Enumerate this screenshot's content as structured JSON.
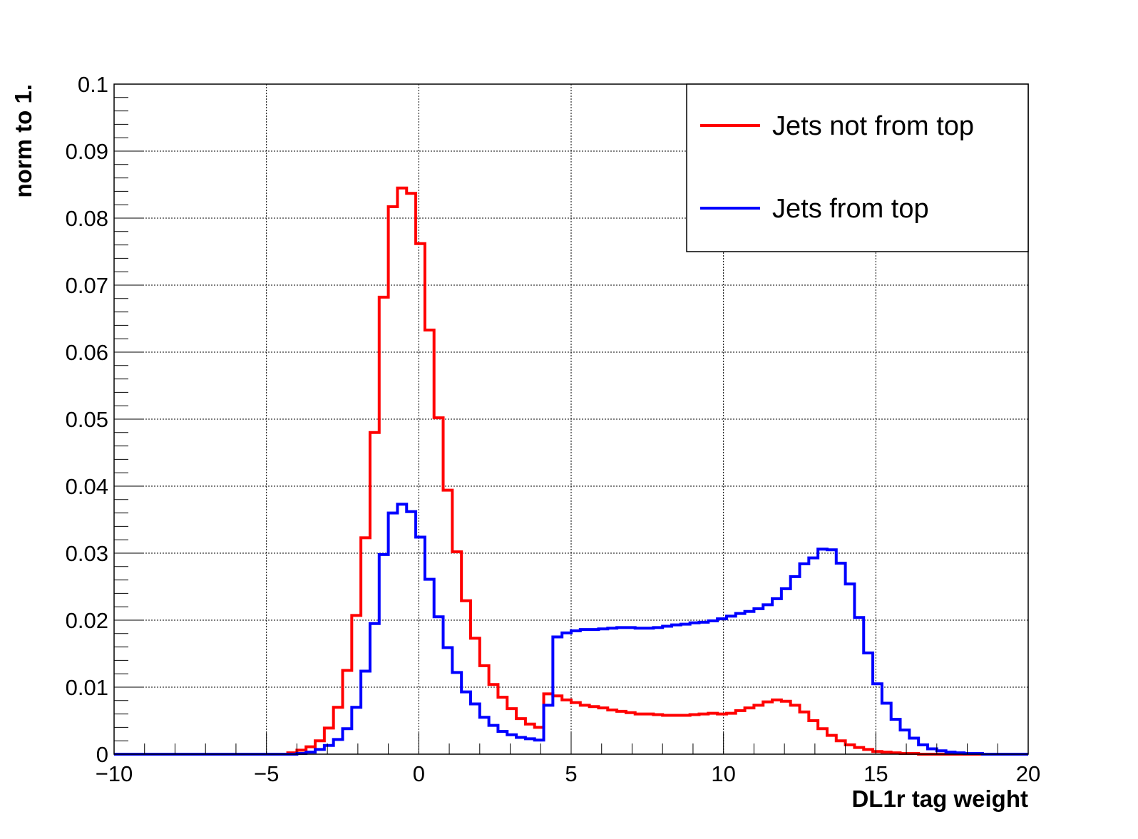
{
  "chart_data": {
    "type": "line",
    "xlabel": "DL1r tag weight",
    "ylabel": "norm to 1.",
    "xlim": [
      -10,
      20
    ],
    "ylim": [
      0,
      0.1
    ],
    "grid": true,
    "legend_position": "top-right",
    "x_ticks": [
      "−10",
      "−5",
      "0",
      "5",
      "10",
      "15",
      "20"
    ],
    "y_ticks": [
      "0",
      "0.01",
      "0.02",
      "0.03",
      "0.04",
      "0.05",
      "0.06",
      "0.07",
      "0.08",
      "0.09",
      "0.1"
    ],
    "binning": {
      "n_bins": 100,
      "x_min": -10,
      "x_max": 20
    },
    "series": [
      {
        "name": "Jets not from top",
        "color": "#ff0000",
        "values": [
          0,
          0,
          0,
          0,
          0,
          0,
          0,
          0,
          0,
          0,
          0,
          0,
          0,
          0,
          0,
          0,
          0,
          0,
          0,
          0.0002,
          0.0006,
          0.0011,
          0.002,
          0.0039,
          0.007,
          0.0125,
          0.0207,
          0.0323,
          0.048,
          0.0682,
          0.0817,
          0.0845,
          0.0837,
          0.0762,
          0.0633,
          0.0502,
          0.0394,
          0.0302,
          0.0229,
          0.0173,
          0.0132,
          0.0104,
          0.0085,
          0.0068,
          0.0053,
          0.0045,
          0.004,
          0.009,
          0.0087,
          0.0081,
          0.0077,
          0.0073,
          0.0071,
          0.0069,
          0.0066,
          0.0064,
          0.0062,
          0.006,
          0.006,
          0.0059,
          0.0058,
          0.0058,
          0.0058,
          0.0059,
          0.006,
          0.0061,
          0.006,
          0.0061,
          0.0065,
          0.0069,
          0.0073,
          0.0078,
          0.0081,
          0.0079,
          0.0073,
          0.0063,
          0.005,
          0.0038,
          0.0028,
          0.002,
          0.0014,
          0.001,
          0.0007,
          0.0004,
          0.0003,
          0.0002,
          0.0001,
          0.0001,
          0,
          0,
          0,
          0,
          0,
          0,
          0,
          0,
          0,
          0,
          0,
          0
        ]
      },
      {
        "name": "Jets from top",
        "color": "#0000ff",
        "values": [
          0,
          0,
          0,
          0,
          0,
          0,
          0,
          0,
          0,
          0,
          0,
          0,
          0,
          0,
          0,
          0,
          0,
          0,
          0,
          0,
          0.0001,
          0.0003,
          0.0007,
          0.0013,
          0.0022,
          0.0038,
          0.007,
          0.0124,
          0.0195,
          0.0298,
          0.036,
          0.0373,
          0.0362,
          0.0324,
          0.0261,
          0.0205,
          0.0159,
          0.0122,
          0.0093,
          0.0075,
          0.0055,
          0.0043,
          0.0034,
          0.0029,
          0.0025,
          0.0023,
          0.0021,
          0.0073,
          0.0175,
          0.0181,
          0.0184,
          0.0186,
          0.0186,
          0.0187,
          0.0188,
          0.0189,
          0.0189,
          0.0188,
          0.0188,
          0.0189,
          0.0191,
          0.0193,
          0.0194,
          0.0196,
          0.0197,
          0.0199,
          0.0202,
          0.0206,
          0.021,
          0.0213,
          0.0217,
          0.0223,
          0.0232,
          0.0247,
          0.0265,
          0.0284,
          0.0293,
          0.0306,
          0.0305,
          0.0285,
          0.0254,
          0.0204,
          0.0151,
          0.0105,
          0.0076,
          0.0052,
          0.0036,
          0.0024,
          0.0014,
          0.0008,
          0.0005,
          0.0003,
          0.0002,
          0.0001,
          0.0001,
          0,
          0,
          0,
          0,
          0
        ]
      }
    ]
  }
}
